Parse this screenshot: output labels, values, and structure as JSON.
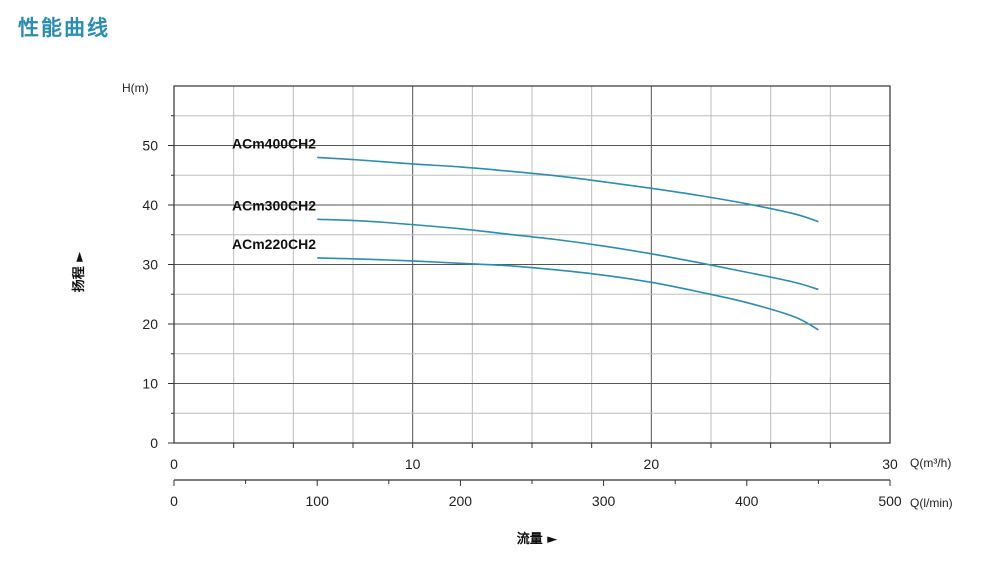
{
  "page": {
    "title": "性能曲线"
  },
  "chart_data": {
    "type": "line",
    "title": "",
    "ylabel": "扬程 ►",
    "xlabel": "流量 ►",
    "y_unit": "H(m)",
    "ylim": [
      0,
      60
    ],
    "y_ticks": [
      "0",
      "10",
      "20",
      "30",
      "40",
      "50"
    ],
    "x_axes": [
      {
        "unit": "Q(m³/h)",
        "lim": [
          0,
          30
        ],
        "ticks": [
          "0",
          "10",
          "20",
          "30"
        ]
      },
      {
        "unit": "Q(l/min)",
        "lim": [
          0,
          500
        ],
        "ticks": [
          "0",
          "100",
          "200",
          "300",
          "400",
          "500"
        ]
      }
    ],
    "grid": true,
    "series": [
      {
        "name": "ACm400CH2",
        "color": "#2a8db3",
        "x": [
          6,
          8,
          10,
          12,
          14,
          16,
          18,
          20,
          22,
          24,
          26,
          27
        ],
        "y": [
          48,
          47.5,
          46.9,
          46.4,
          45.7,
          44.9,
          43.9,
          42.8,
          41.6,
          40.2,
          38.5,
          37.2
        ]
      },
      {
        "name": "ACm300CH2",
        "color": "#2a8db3",
        "x": [
          6,
          8,
          10,
          12,
          14,
          16,
          18,
          20,
          22,
          24,
          26,
          27
        ],
        "y": [
          37.6,
          37.3,
          36.7,
          36.0,
          35.1,
          34.2,
          33.1,
          31.8,
          30.3,
          28.7,
          27.0,
          25.8
        ]
      },
      {
        "name": "ACm220CH2",
        "color": "#2a8db3",
        "x": [
          6,
          8,
          10,
          12,
          14,
          16,
          18,
          20,
          22,
          24,
          26,
          27
        ],
        "y": [
          31.1,
          30.9,
          30.6,
          30.2,
          29.8,
          29.1,
          28.2,
          27.0,
          25.4,
          23.6,
          21.2,
          19.0
        ]
      }
    ]
  }
}
